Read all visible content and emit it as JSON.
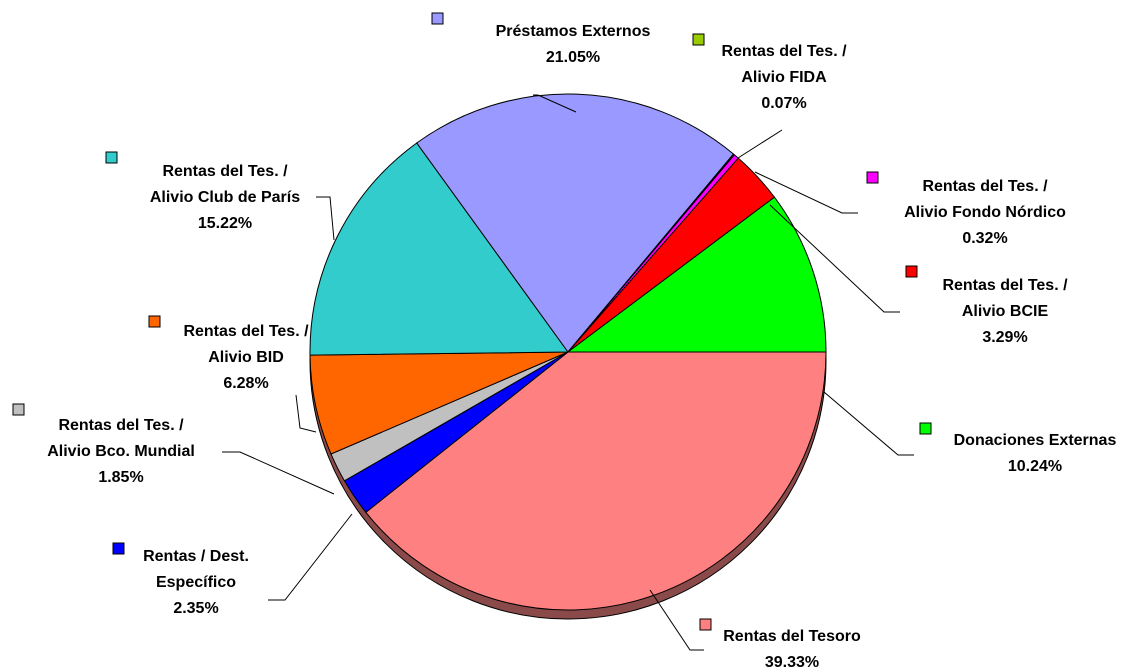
{
  "chart_data": {
    "type": "pie",
    "categories": [
      "Rentas del Tesoro",
      "Rentas / Dest.\nEspecífico",
      "Rentas del Tes. /\nAlivio Bco. Mundial",
      "Rentas del Tes. /\nAlivio BID",
      "Rentas del Tes. /\nAlivio Club de París",
      "Préstamos Externos",
      "Rentas del Tes. /\nAlivio FIDA",
      "Rentas del Tes. /\nAlivio Fondo Nórdico",
      "Rentas del Tes. /\nAlivio BCIE",
      "Donaciones Externas"
    ],
    "values": [
      39.33,
      2.35,
      1.85,
      6.28,
      15.22,
      21.05,
      0.07,
      0.32,
      3.29,
      10.24
    ],
    "value_labels": [
      "39.33%",
      "2.35%",
      "1.85%",
      "6.28%",
      "15.22%",
      "21.05%",
      "0.07%",
      "0.32%",
      "3.29%",
      "10.24%"
    ],
    "colors": [
      "#ff8080",
      "#0000ff",
      "#c0c0c0",
      "#ff6600",
      "#33cccc",
      "#9999ff",
      "#99cc00",
      "#ff00ff",
      "#ff0000",
      "#00ff00"
    ]
  }
}
